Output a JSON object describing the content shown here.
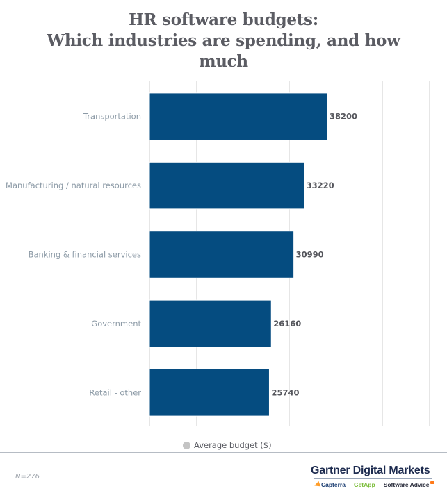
{
  "chart_data": {
    "type": "bar",
    "orientation": "horizontal",
    "title_lines": [
      "HR software budgets:",
      "Which industries are spending, and how",
      "much"
    ],
    "title": "HR software budgets: Which industries are spending, and how much",
    "categories": [
      "Transportation",
      "Manufacturing / natural resources",
      "Banking & financial services",
      "Government",
      "Retail - other"
    ],
    "series": [
      {
        "name": "Average budget ($)",
        "values": [
          38200,
          33220,
          30990,
          26160,
          25740
        ],
        "color": "#054c80"
      }
    ],
    "data_labels": [
      "38200",
      "33220",
      "30990",
      "26160",
      "25740"
    ],
    "xlabel": "",
    "ylabel": "",
    "xlim": [
      0,
      60000
    ],
    "grid_step": 10000,
    "grid": true,
    "tick_labels_visible": false,
    "legend": {
      "position": "bottom-center",
      "entries": [
        "Average budget ($)"
      ],
      "marker_color": "#c4c4c4"
    }
  },
  "footer": {
    "note": "N=276",
    "brand": "Gartner Digital Markets",
    "sub_brands": [
      "Capterra",
      "GetApp",
      "Software Advice"
    ]
  },
  "colors": {
    "bar": "#054c80",
    "gridline": "#e6e6e6",
    "title": "#5b5c63",
    "category_label": "#8c9aa6",
    "value_label": "#55565c"
  }
}
